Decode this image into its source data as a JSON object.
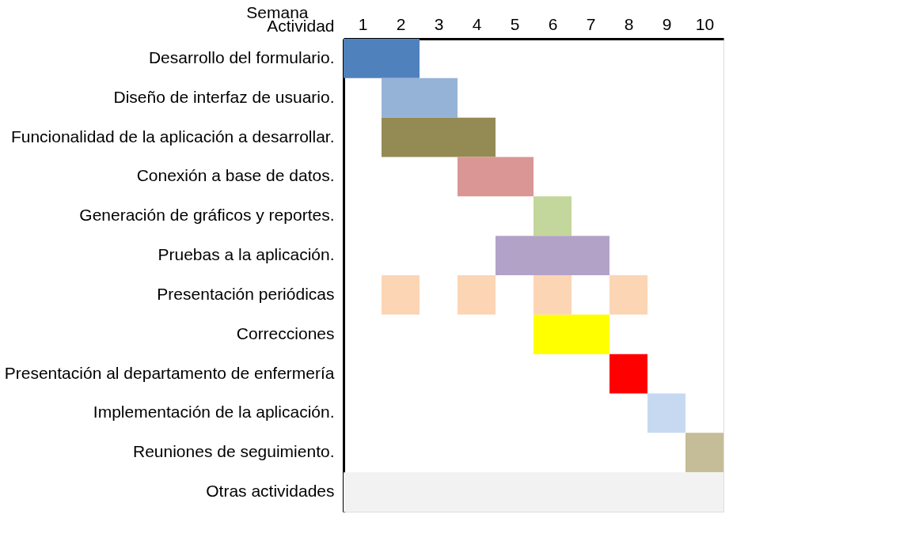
{
  "chart_data": {
    "type": "bar",
    "orientation": "horizontal",
    "xlabel": "Semana",
    "ylabel": "Actividad",
    "categories": [
      "Desarrollo del formulario.",
      "Diseño de interfaz de usuario.",
      "Funcionalidad de la aplicación a desarrollar.",
      "Conexión a base de datos.",
      "Generación de gráficos y reportes.",
      "Pruebas a  la aplicación.",
      "Presentación periódicas",
      "Correcciones",
      "Presentación al departamento de enfermería",
      "Implementación de la aplicación.",
      "Reuniones de seguimiento.",
      "Otras actividades"
    ],
    "series": [
      {
        "values": [
          2,
          2,
          3,
          2,
          1,
          3,
          1,
          2,
          1,
          1,
          1,
          10
        ],
        "base": [
          0,
          1,
          1,
          3,
          5,
          4,
          1,
          5,
          7,
          8,
          9,
          0
        ],
        "colors": [
          "#4f81bd",
          "#95b3d7",
          "#948a54",
          "#d99694",
          "#c3d69b",
          "#b2a2c7",
          "#fcd5b5",
          "#ffff00",
          "#ff0000",
          "#c6d9f1",
          "#c4bd97",
          "#f2f2f2"
        ]
      },
      {
        "values": [
          null,
          null,
          null,
          null,
          null,
          null,
          1,
          null,
          null,
          null,
          null,
          null
        ],
        "base": [
          null,
          null,
          null,
          null,
          null,
          null,
          3,
          null,
          null,
          null,
          null,
          null
        ],
        "color": "#fcd5b5"
      },
      {
        "values": [
          null,
          null,
          null,
          null,
          null,
          null,
          1,
          null,
          null,
          null,
          null,
          null
        ],
        "base": [
          null,
          null,
          null,
          null,
          null,
          null,
          5,
          null,
          null,
          null,
          null,
          null
        ],
        "color": "#fcd5b5"
      },
      {
        "values": [
          null,
          null,
          null,
          null,
          null,
          null,
          1,
          null,
          null,
          null,
          null,
          null
        ],
        "base": [
          null,
          null,
          null,
          null,
          null,
          null,
          7,
          null,
          null,
          null,
          null,
          null
        ],
        "color": "#fcd5b5"
      }
    ],
    "xlim": [
      0,
      10
    ],
    "xticks": [
      {
        "value": 0.5,
        "label": "1"
      },
      {
        "value": 1.5,
        "label": "2"
      },
      {
        "value": 2.5,
        "label": "3"
      },
      {
        "value": 3.5,
        "label": "4"
      },
      {
        "value": 4.5,
        "label": "5"
      },
      {
        "value": 5.5,
        "label": "6"
      },
      {
        "value": 6.5,
        "label": "7"
      },
      {
        "value": 7.5,
        "label": "8"
      },
      {
        "value": 8.5,
        "label": "9"
      },
      {
        "value": 9.5,
        "label": "10"
      }
    ],
    "grid": false,
    "legend": false
  }
}
